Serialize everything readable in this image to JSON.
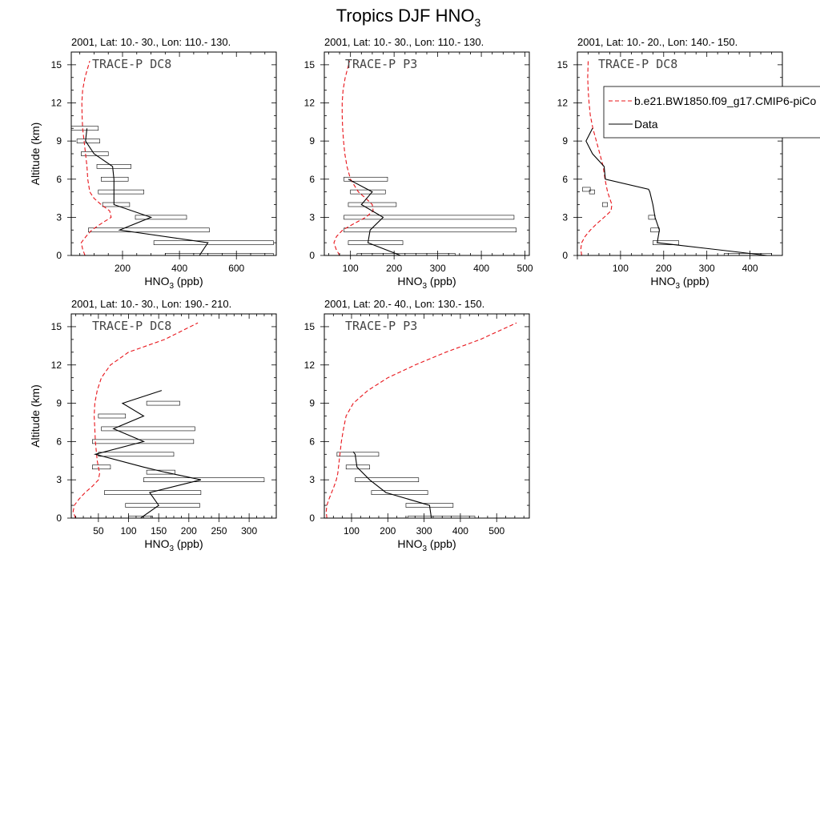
{
  "figure": {
    "title_main": "Tropics DJF HNO",
    "title_sub": "3",
    "ylabel": "Altitude (km)",
    "xlabel_main": "HNO",
    "xlabel_sub": "3",
    "xlabel_unit": " (ppb)",
    "legend": {
      "model_label": "b.e21.BW1850.f09_g17.CMIP6-piCo",
      "data_label": "Data",
      "model_color": "#e8141a",
      "data_color": "#000000"
    }
  },
  "chart_data": [
    {
      "type": "line",
      "subtitle": "2001, Lat: 10.- 30., Lon: 110.- 130.",
      "campaign": "TRACE-P DC8",
      "xlim": [
        20,
        740
      ],
      "ylim": [
        0,
        16
      ],
      "xticks": [
        200,
        400,
        600
      ],
      "yticks": [
        0,
        3,
        6,
        9,
        12,
        15
      ],
      "model": {
        "x": [
          68,
          60,
          55,
          72,
          92,
          125,
          160,
          155,
          125,
          100,
          85,
          78,
          75,
          70,
          65,
          60,
          58,
          57,
          60,
          68,
          85
        ],
        "y": [
          0,
          0.5,
          1,
          1.5,
          2,
          2.5,
          3,
          3.5,
          4,
          4.5,
          5,
          6,
          7,
          8,
          9,
          10,
          11,
          12,
          13,
          14,
          15.3
        ]
      },
      "data": {
        "x": [
          470,
          500,
          190,
          300,
          170,
          170,
          170,
          165,
          100,
          70,
          75
        ],
        "y": [
          0,
          1,
          2,
          3,
          4,
          5,
          6,
          7,
          8,
          9,
          10
        ]
      },
      "ranges": [
        [
          350,
          730
        ],
        [
          310,
          730
        ],
        [
          80,
          505
        ],
        [
          245,
          425
        ],
        [
          130,
          225
        ],
        [
          115,
          275
        ],
        [
          125,
          220
        ],
        [
          110,
          230
        ],
        [
          55,
          150
        ],
        [
          40,
          120
        ],
        [
          20,
          115
        ]
      ]
    },
    {
      "type": "line",
      "subtitle": "2001, Lat: 10.- 30., Lon: 110.- 130.",
      "campaign": "TRACE-P P3",
      "xlim": [
        40,
        510
      ],
      "ylim": [
        0,
        16
      ],
      "xticks": [
        100,
        200,
        300,
        400,
        500
      ],
      "yticks": [
        0,
        3,
        6,
        9,
        12,
        15
      ],
      "model": {
        "x": [
          75,
          67,
          62,
          68,
          82,
          108,
          135,
          152,
          150,
          135,
          118,
          100,
          92,
          87,
          84,
          82,
          81,
          81,
          83,
          88,
          98
        ],
        "y": [
          0,
          0.5,
          1,
          1.5,
          2,
          2.5,
          3,
          3.5,
          4,
          4.5,
          5,
          6,
          7,
          8,
          9,
          10,
          11,
          12,
          13,
          14,
          15.3
        ]
      },
      "data": {
        "x": [
          215,
          140,
          145,
          175,
          125,
          150,
          95
        ],
        "y": [
          0,
          1,
          2,
          3,
          4,
          5,
          6
        ]
      },
      "ranges": [
        [
          115,
          340
        ],
        [
          95,
          220
        ],
        [
          85,
          480
        ],
        [
          85,
          475
        ],
        [
          95,
          205
        ],
        [
          100,
          180
        ],
        [
          85,
          185
        ]
      ]
    },
    {
      "type": "line",
      "subtitle": "2001, Lat: 10.- 20., Lon: 140.- 150.",
      "campaign": "TRACE-P DC8",
      "xlim": [
        0,
        475
      ],
      "ylim": [
        0,
        16
      ],
      "xticks": [
        100,
        200,
        300,
        400
      ],
      "yticks": [
        0,
        3,
        6,
        9,
        12,
        15
      ],
      "model": {
        "x": [
          10,
          8,
          10,
          18,
          30,
          45,
          62,
          78,
          80,
          75,
          70,
          64,
          60,
          52,
          44,
          36,
          30,
          27,
          25,
          24,
          25
        ],
        "y": [
          0,
          0.5,
          1,
          1.5,
          2,
          2.5,
          3,
          3.5,
          4,
          4.5,
          5,
          6,
          7,
          8,
          9,
          10,
          11,
          12,
          13,
          14,
          15.3
        ]
      },
      "data": {
        "x": [
          440,
          185,
          190,
          180,
          175,
          168,
          165,
          65,
          62,
          35,
          20,
          35
        ],
        "y": [
          0,
          1,
          2,
          3,
          4,
          5,
          5.2,
          6,
          7,
          8,
          9,
          10
        ]
      },
      "ranges": [
        [
          340,
          450
        ],
        [
          175,
          235
        ],
        [
          170,
          190
        ],
        [
          165,
          180
        ],
        [
          58,
          70
        ],
        [
          28,
          40
        ],
        [
          12,
          30
        ]
      ]
    },
    {
      "type": "line",
      "subtitle": "2001, Lat: 10.- 30., Lon: 190.- 210.",
      "campaign": "TRACE-P DC8",
      "xlim": [
        5,
        345
      ],
      "ylim": [
        0,
        16
      ],
      "xticks": [
        50,
        100,
        150,
        200,
        250,
        300
      ],
      "yticks": [
        0,
        3,
        6,
        9,
        12,
        15
      ],
      "model": {
        "x": [
          12,
          8,
          10,
          18,
          28,
          40,
          50,
          52,
          50,
          48,
          47,
          45,
          44,
          43,
          44,
          48,
          55,
          70,
          100,
          160,
          215
        ],
        "y": [
          0,
          0.5,
          1,
          1.5,
          2,
          2.5,
          3,
          3.5,
          4,
          4.5,
          5,
          6,
          7,
          8,
          9,
          10,
          11,
          12,
          13,
          14,
          15.3
        ]
      },
      "data": {
        "x": [
          120,
          150,
          135,
          220,
          160,
          125,
          45,
          125,
          75,
          125,
          90,
          155
        ],
        "y": [
          0,
          1,
          2,
          3,
          3.6,
          4,
          5,
          6,
          7,
          8,
          9,
          10
        ]
      },
      "ranges": [
        [
          100,
          140
        ],
        [
          95,
          218
        ],
        [
          60,
          220
        ],
        [
          125,
          325
        ],
        [
          130,
          177
        ],
        [
          40,
          70
        ],
        [
          50,
          175
        ],
        [
          40,
          208
        ],
        [
          55,
          210
        ],
        [
          50,
          95
        ],
        [
          130,
          185
        ]
      ]
    },
    {
      "type": "line",
      "subtitle": "2001, Lat: 20.- 40., Lon: 130.- 150.",
      "campaign": "TRACE-P P3",
      "xlim": [
        25,
        590
      ],
      "ylim": [
        0,
        16
      ],
      "xticks": [
        100,
        200,
        300,
        400,
        500
      ],
      "yticks": [
        0,
        3,
        6,
        9,
        12,
        15
      ],
      "model": {
        "x": [
          32,
          30,
          32,
          38,
          45,
          52,
          58,
          62,
          64,
          66,
          68,
          72,
          78,
          85,
          105,
          145,
          200,
          275,
          360,
          455,
          555
        ],
        "y": [
          0,
          0.5,
          1,
          1.5,
          2,
          2.5,
          3,
          3.5,
          4,
          4.5,
          5,
          6,
          7,
          8,
          9,
          10,
          11,
          12,
          13,
          14,
          15.3
        ]
      },
      "data": {
        "x": [
          320,
          315,
          195,
          150,
          115,
          110,
          105
        ],
        "y": [
          0,
          1,
          2,
          3,
          4,
          5,
          5.2
        ]
      },
      "ranges": [
        [
          255,
          440
        ],
        [
          250,
          380
        ],
        [
          155,
          310
        ],
        [
          110,
          285
        ],
        [
          85,
          150
        ],
        [
          60,
          175
        ]
      ]
    }
  ]
}
